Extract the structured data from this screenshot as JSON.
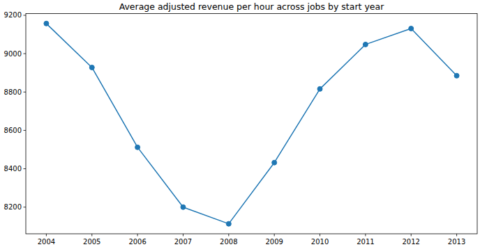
{
  "chart_data": {
    "type": "line",
    "title": "Average adjusted revenue per hour across jobs by start year",
    "x": [
      2004,
      2005,
      2006,
      2007,
      2008,
      2009,
      2010,
      2011,
      2012,
      2013
    ],
    "series": [
      {
        "name": null,
        "color": "#1f77b4",
        "marker": "circle",
        "line_style": "solid",
        "values": [
          9157,
          8928,
          8512,
          8200,
          8113,
          8432,
          8816,
          9048,
          9131,
          8885
        ]
      }
    ],
    "xlim": [
      2003.55,
      2013.45
    ],
    "xticks": [
      2004,
      2005,
      2006,
      2007,
      2008,
      2009,
      2010,
      2011,
      2012,
      2013
    ],
    "ylim": [
      8061,
      9209
    ],
    "yticks": [
      8200,
      8400,
      8600,
      8800,
      9000,
      9200
    ],
    "grid": false
  }
}
